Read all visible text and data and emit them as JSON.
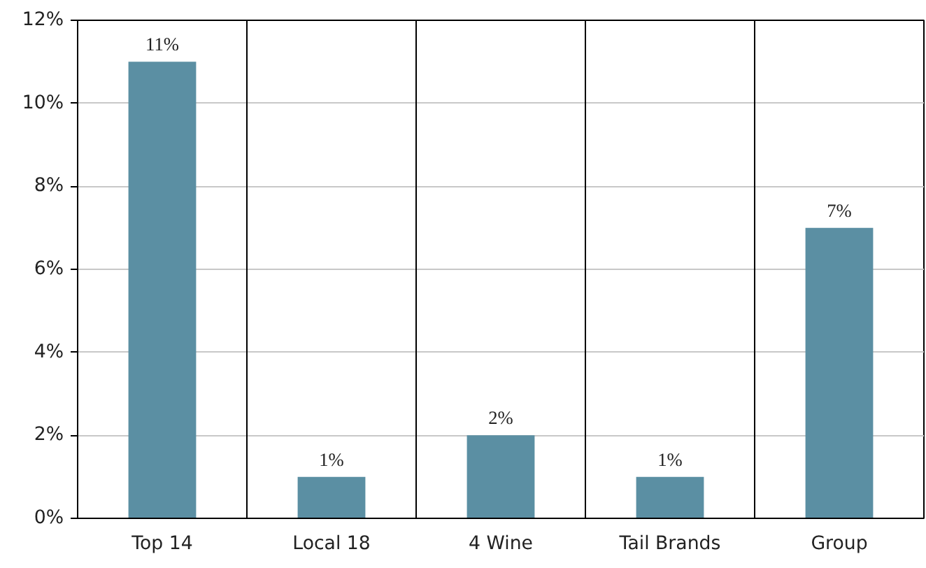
{
  "chart_data": {
    "type": "bar",
    "categories": [
      "Top 14",
      "Local 18",
      "4 Wine",
      "Tail Brands",
      "Group"
    ],
    "values": [
      11,
      1,
      2,
      1,
      7
    ],
    "color": "#5b8fa3",
    "value_labels": [
      "11%",
      "1%",
      "2%",
      "1%",
      "7%"
    ],
    "ylim": [
      0,
      12
    ],
    "yticks": [
      {
        "value": 0,
        "label": "0%"
      },
      {
        "value": 2,
        "label": "2%"
      },
      {
        "value": 4,
        "label": "4%"
      },
      {
        "value": 6,
        "label": "6%"
      },
      {
        "value": 8,
        "label": "8%"
      },
      {
        "value": 10,
        "label": "10%"
      },
      {
        "value": 12,
        "label": "12%"
      }
    ],
    "grid": true
  }
}
